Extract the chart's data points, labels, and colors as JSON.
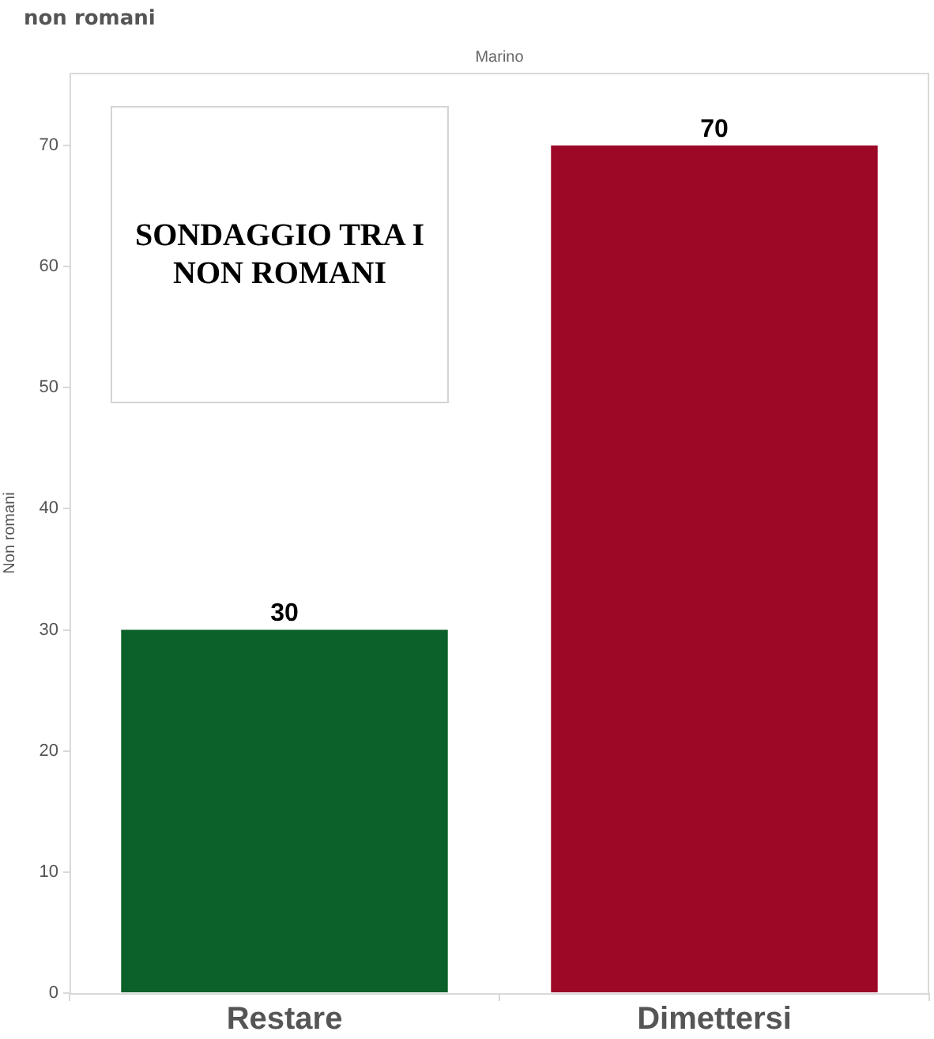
{
  "chart_data": {
    "type": "bar",
    "title": "non romani",
    "subtitle": "Marino",
    "ylabel": "Non romani",
    "categories": [
      "Restare",
      "Dimettersi"
    ],
    "values": [
      30,
      70
    ],
    "colors": [
      "#0b6129",
      "#9c0826"
    ],
    "ylim": [
      0,
      76
    ],
    "yticks": [
      0,
      10,
      20,
      30,
      40,
      50,
      60,
      70
    ],
    "data_labels": true,
    "annotations": [
      "SONDAGGIO TRA I NON ROMANI"
    ]
  }
}
